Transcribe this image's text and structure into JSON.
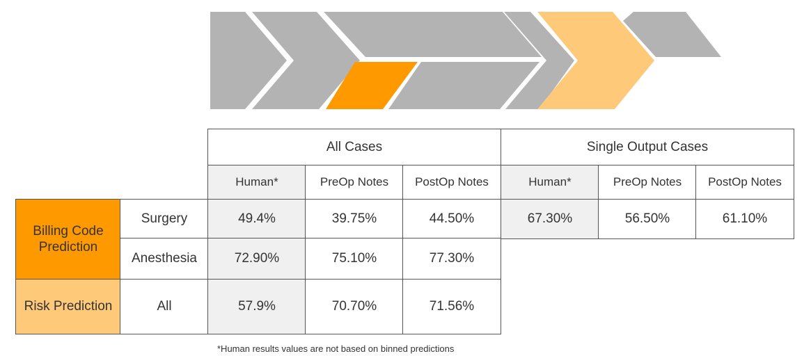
{
  "colors": {
    "chevron_grey": "#b3b3b3",
    "accent_orange": "#ff9900",
    "light_orange": "#ffc97a",
    "header_grey": "#f0f0f0",
    "border": "#555555"
  },
  "table": {
    "group_headers": [
      "All Cases",
      "Single Output Cases"
    ],
    "sub_headers": [
      "Human*",
      "PreOp Notes",
      "PostOp Notes",
      "Human*",
      "PreOp Notes",
      "PostOp Notes"
    ],
    "categories": [
      {
        "label": "Billing Code Prediction",
        "rows": [
          "Surgery",
          "Anesthesia"
        ]
      },
      {
        "label": "Risk Prediction",
        "rows": [
          "All"
        ]
      }
    ],
    "values": {
      "surgery": [
        "49.4%",
        "39.75%",
        "44.50%",
        "67.30%",
        "56.50%",
        "61.10%"
      ],
      "anesthesia": [
        "72.90%",
        "75.10%",
        "77.30%"
      ],
      "all": [
        "57.9%",
        "70.70%",
        "71.56%"
      ]
    }
  },
  "footnote": "*Human results values are not based on binned predictions"
}
